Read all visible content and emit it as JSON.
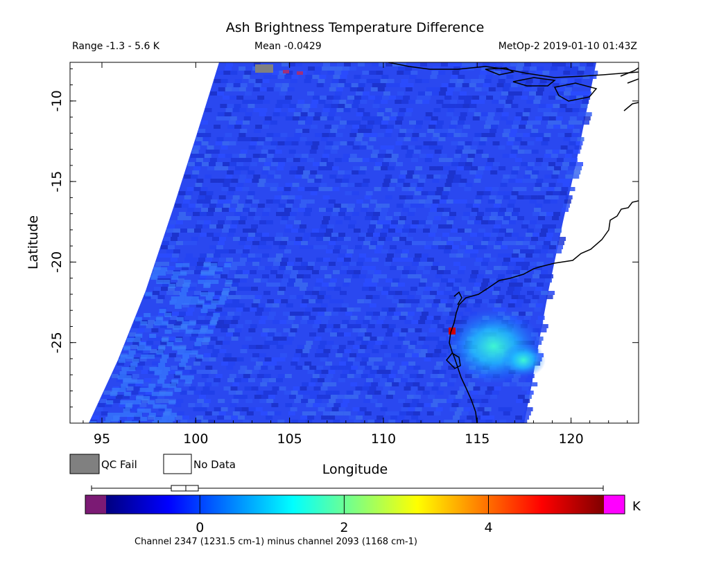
{
  "header": {
    "title": "Ash Brightness Temperature Difference",
    "range": "Range -1.3 - 5.6 K",
    "mean": "Mean -0.0429",
    "satellite_time": "MetOp-2 2019-01-10 01:43Z"
  },
  "map": {
    "lon_range": [
      93.3,
      123.6
    ],
    "lat_range": [
      -30.0,
      -7.6
    ],
    "x_axis": {
      "label": "Longitude",
      "ticks": [
        {
          "value": 95,
          "label": "95"
        },
        {
          "value": 100,
          "label": "100"
        },
        {
          "value": 105,
          "label": "105"
        },
        {
          "value": 110,
          "label": "110"
        },
        {
          "value": 115,
          "label": "115"
        },
        {
          "value": 120,
          "label": "120"
        }
      ]
    },
    "y_axis": {
      "label": "Latitude",
      "ticks": [
        {
          "value": -10,
          "label": "-10"
        },
        {
          "value": -15,
          "label": "-15"
        },
        {
          "value": -20,
          "label": "-20"
        },
        {
          "value": -25,
          "label": "-25"
        }
      ]
    },
    "swath": {
      "description_value": "brightness temperature difference field",
      "background_color": "#2a48f0",
      "anomalies": [
        {
          "lon": 116.2,
          "lat": -25.4,
          "value": 1.7
        },
        {
          "lon": 115.2,
          "lat": -24.6,
          "value": 1.4
        },
        {
          "lon": 114.3,
          "lat": -23.9,
          "value": 1.1
        },
        {
          "lon": 117.0,
          "lat": -26.2,
          "value": 1.3
        },
        {
          "lon": 113.6,
          "lat": -24.2,
          "value": 5.0
        }
      ]
    }
  },
  "legend": {
    "qc_fail": {
      "label": "QC Fail",
      "color": "#808080"
    },
    "no_data": {
      "label": "No Data",
      "color": "#ffffff"
    }
  },
  "colorbar": {
    "vmin": -1.3,
    "vmax": 5.6,
    "unit": "K",
    "ticks": [
      {
        "value": 0,
        "label": "0"
      },
      {
        "value": 2,
        "label": "2"
      },
      {
        "value": 4,
        "label": "4"
      }
    ],
    "under_color": "#7b1a74",
    "over_color": "#ff00ff",
    "stops": [
      "#00007f",
      "#0000ff",
      "#0080ff",
      "#00ffff",
      "#80ff80",
      "#ffff00",
      "#ff8000",
      "#ff0000",
      "#7f0000"
    ],
    "caption": "Channel 2347 (1231.5 cm-1) minus channel 2093 (1168 cm-1)"
  }
}
